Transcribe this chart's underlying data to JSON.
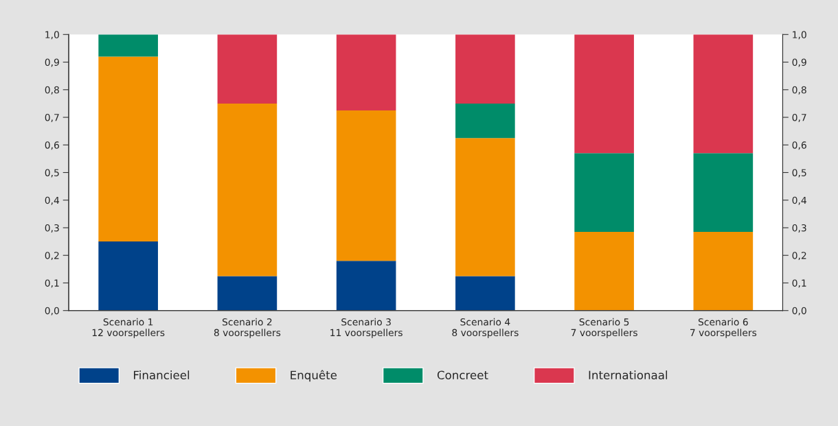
{
  "chart_data": {
    "type": "bar",
    "stacked": true,
    "categories": [
      "Scenario 1\n12 voorspellers",
      "Scenario 2\n8 voorspellers",
      "Scenario 3\n11 voorspellers",
      "Scenario 4\n8 voorspellers",
      "Scenario 5\n7 voorspellers",
      "Scenario 6\n7 voorspellers"
    ],
    "series": [
      {
        "name": "Financieel",
        "color": "#00428a",
        "values": [
          0.25,
          0.125,
          0.18,
          0.125,
          null,
          null
        ]
      },
      {
        "name": "Enquête",
        "color": "#f39200",
        "values": [
          0.67,
          0.625,
          0.545,
          0.5,
          0.285,
          0.285
        ]
      },
      {
        "name": "Concreet",
        "color": "#008c69",
        "values": [
          0.08,
          null,
          null,
          0.125,
          0.285,
          0.285
        ]
      },
      {
        "name": "Internationaal",
        "color": "#da374f",
        "values": [
          null,
          0.25,
          0.275,
          0.25,
          0.43,
          0.43
        ]
      }
    ],
    "ylim": [
      0,
      1
    ],
    "yticks": [
      {
        "value": 0,
        "label": "0,0"
      },
      {
        "value": 0.1,
        "label": "0,1"
      },
      {
        "value": 0.2,
        "label": "0,2"
      },
      {
        "value": 0.3,
        "label": "0,3"
      },
      {
        "value": 0.4,
        "label": "0,4"
      },
      {
        "value": 0.5,
        "label": "0,5"
      },
      {
        "value": 0.6,
        "label": "0,6"
      },
      {
        "value": 0.7,
        "label": "0,7"
      },
      {
        "value": 0.8,
        "label": "0,8"
      },
      {
        "value": 0.9,
        "label": "0,9"
      },
      {
        "value": 1,
        "label": "1,0"
      }
    ],
    "y2lim": [
      0,
      1
    ],
    "y2ticks": [
      {
        "value": 0,
        "label": "0,0"
      },
      {
        "value": 0.1,
        "label": "0,1"
      },
      {
        "value": 0.2,
        "label": "0,2"
      },
      {
        "value": 0.3,
        "label": "0,3"
      },
      {
        "value": 0.4,
        "label": "0,4"
      },
      {
        "value": 0.5,
        "label": "0,5"
      },
      {
        "value": 0.6,
        "label": "0,6"
      },
      {
        "value": 0.7,
        "label": "0,7"
      },
      {
        "value": 0.8,
        "label": "0,8"
      },
      {
        "value": 0.9,
        "label": "0,9"
      },
      {
        "value": 1,
        "label": "1,0"
      }
    ],
    "grid": false,
    "legend": "bottom"
  }
}
